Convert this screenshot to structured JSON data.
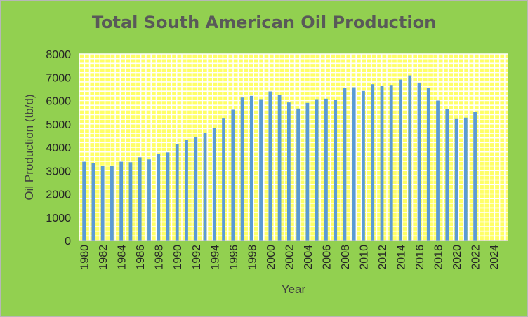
{
  "chart_data": {
    "type": "bar",
    "title": "Total South American Oil Production",
    "xlabel": "Year",
    "ylabel": "Oil Production (tb/d)",
    "ylim": [
      0,
      8000
    ],
    "yticks": [
      "0",
      "1000",
      "2000",
      "3000",
      "4000",
      "5000",
      "6000",
      "7000",
      "8000"
    ],
    "xticks": [
      "1980",
      "1982",
      "1984",
      "1986",
      "1988",
      "1990",
      "1992",
      "1994",
      "1996",
      "1998",
      "2000",
      "2002",
      "2004",
      "2006",
      "2008",
      "2010",
      "2012",
      "2014",
      "2016",
      "2018",
      "2020",
      "2022",
      "2024"
    ],
    "x": [
      1980,
      1981,
      1982,
      1983,
      1984,
      1985,
      1986,
      1987,
      1988,
      1989,
      1990,
      1991,
      1992,
      1993,
      1994,
      1995,
      1996,
      1997,
      1998,
      1999,
      2000,
      2001,
      2002,
      2003,
      2004,
      2005,
      2006,
      2007,
      2008,
      2009,
      2010,
      2011,
      2012,
      2013,
      2014,
      2015,
      2016,
      2017,
      2018,
      2019,
      2020,
      2021,
      2022
    ],
    "values": [
      3380,
      3330,
      3200,
      3190,
      3380,
      3360,
      3570,
      3480,
      3720,
      3780,
      4120,
      4320,
      4420,
      4610,
      4830,
      5260,
      5610,
      6130,
      6200,
      6060,
      6390,
      6230,
      5920,
      5660,
      5900,
      6060,
      6080,
      6040,
      6550,
      6570,
      6410,
      6700,
      6620,
      6670,
      6900,
      7080,
      6770,
      6550,
      6000,
      5640,
      5240,
      5270,
      5530
    ],
    "colors": {
      "background": "#92d050",
      "plot_area": "#ffff66",
      "grid": "#ffffff",
      "bar": "#5b9bd5"
    },
    "grid": true,
    "legend": "none"
  }
}
